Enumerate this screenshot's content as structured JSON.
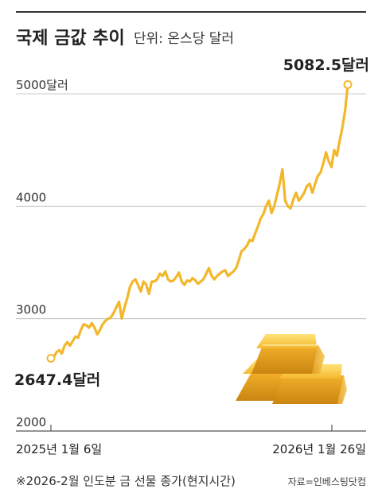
{
  "header": {
    "title": "국제 금값 추이",
    "unit": "단위: 온스당 달러"
  },
  "footer": {
    "note": "※2026-2월 인도분 금 선물 종가(현지시간)",
    "source": "자료=인베스팅닷컴"
  },
  "colors": {
    "line": "#f2b72b",
    "grid": "#bbbbbb",
    "text": "#222222"
  },
  "chart_data": {
    "type": "line",
    "title": "국제 금값 추이",
    "unit_label": "단위: 온스당 달러",
    "ylim": [
      2000,
      5200
    ],
    "y_ticks": [
      {
        "value": 2000,
        "label": "2000"
      },
      {
        "value": 3000,
        "label": "3000"
      },
      {
        "value": 4000,
        "label": "4000"
      },
      {
        "value": 5000,
        "label": "5000달러"
      }
    ],
    "x_tick_labels": [
      "2025년 1월 6일",
      "2026년 1월 26일"
    ],
    "grid": true,
    "start": {
      "date": "2025-01-06",
      "value": 2647.4,
      "label": "2647.4달러"
    },
    "end": {
      "date": "2026-01-26",
      "value": 5082.5,
      "label": "5082.5달러"
    },
    "series": [
      {
        "values": [
          2647.4,
          2655,
          2700,
          2720,
          2690,
          2760,
          2790,
          2760,
          2800,
          2840,
          2830,
          2900,
          2950,
          2940,
          2920,
          2960,
          2920,
          2860,
          2900,
          2950,
          2980,
          3000,
          3010,
          3050,
          3100,
          3150,
          3000,
          3100,
          3180,
          3280,
          3330,
          3350,
          3300,
          3240,
          3330,
          3300,
          3220,
          3330,
          3330,
          3350,
          3400,
          3380,
          3420,
          3350,
          3330,
          3340,
          3370,
          3410,
          3330,
          3300,
          3340,
          3330,
          3360,
          3340,
          3310,
          3330,
          3350,
          3400,
          3450,
          3380,
          3350,
          3380,
          3400,
          3420,
          3430,
          3380,
          3400,
          3420,
          3450,
          3520,
          3600,
          3620,
          3650,
          3700,
          3690,
          3760,
          3820,
          3890,
          3930,
          4000,
          4050,
          3940,
          4000,
          4100,
          4200,
          4330,
          4050,
          4000,
          3980,
          4060,
          4120,
          4050,
          4080,
          4120,
          4180,
          4200,
          4120,
          4200,
          4270,
          4300,
          4380,
          4480,
          4400,
          4350,
          4500,
          4450,
          4580,
          4700,
          4850,
          5082.5
        ]
      }
    ]
  }
}
